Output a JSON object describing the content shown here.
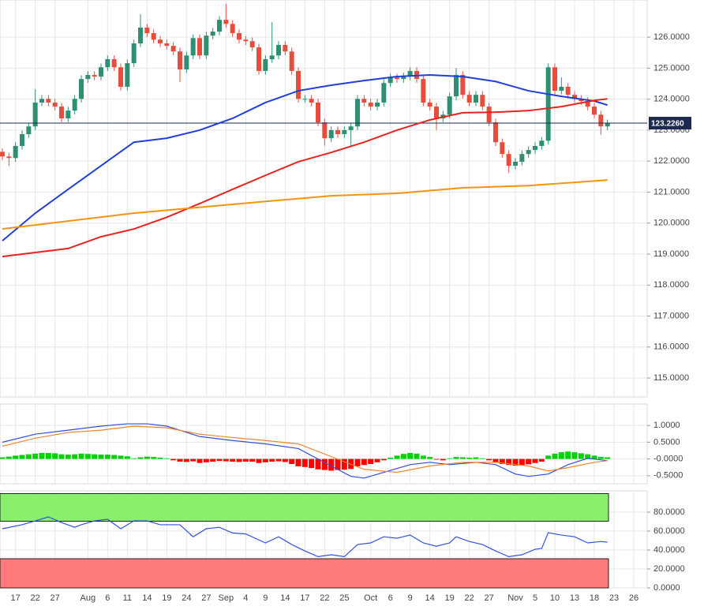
{
  "chart_data": [
    {
      "type": "candlestick",
      "categories": [
        null,
        null,
        "17",
        null,
        null,
        "22",
        null,
        null,
        "27",
        null,
        null,
        null,
        null,
        "Aug",
        null,
        null,
        "6",
        null,
        null,
        "11",
        null,
        null,
        "14",
        null,
        null,
        "19",
        null,
        null,
        "24",
        null,
        null,
        "27",
        null,
        null,
        "Sep",
        null,
        null,
        "4",
        null,
        null,
        "9",
        null,
        null,
        "14",
        null,
        null,
        "17",
        null,
        null,
        "22",
        null,
        null,
        "25",
        null,
        null,
        null,
        "Oct",
        null,
        null,
        "6",
        null,
        null,
        "9",
        null,
        null,
        "14",
        null,
        null,
        "19",
        null,
        null,
        "22",
        null,
        null,
        "27",
        null,
        null,
        null,
        "Nov",
        null,
        null,
        "5",
        null,
        null,
        "10",
        null,
        null,
        "13",
        null,
        null,
        "18",
        null,
        null,
        "23",
        null,
        null,
        "26"
      ],
      "open": [
        122.3,
        122.15,
        122.1,
        122.49,
        122.87,
        123.12,
        123.89,
        124.01,
        123.89,
        123.76,
        123.38,
        123.63,
        124.01,
        124.65,
        124.78,
        124.73,
        125.03,
        125.29,
        125.03,
        124.4,
        125.16,
        125.8,
        126.31,
        126.13,
        125.92,
        125.8,
        125.72,
        125.54,
        124.96,
        125.41,
        125.97,
        125.41,
        126.05,
        126.18,
        126.56,
        126.43,
        126.13,
        125.92,
        125.87,
        125.67,
        124.91,
        125.29,
        125.41,
        125.75,
        125.54,
        124.91,
        124.01,
        124.01,
        123.89,
        123.25,
        122.74,
        123.0,
        122.87,
        123.0,
        123.12,
        124.01,
        123.89,
        123.76,
        123.89,
        124.52,
        124.7,
        124.65,
        124.73,
        124.91,
        124.65,
        123.89,
        123.76,
        123.38,
        123.5,
        124.09,
        124.78,
        124.14,
        123.89,
        124.14,
        123.76,
        123.25,
        122.61,
        122.23,
        121.85,
        121.98,
        122.23,
        122.36,
        122.49,
        122.66,
        125.03,
        124.27,
        124.4,
        124.14,
        124.01,
        123.94,
        123.76,
        123.5,
        123.12,
        null,
        null,
        null,
        null
      ],
      "high": [
        122.42,
        122.27,
        122.61,
        122.99,
        123.24,
        124.32,
        124.13,
        124.13,
        124.01,
        123.88,
        123.75,
        124.13,
        124.77,
        124.9,
        124.9,
        125.15,
        125.41,
        125.41,
        125.15,
        125.28,
        125.92,
        126.74,
        126.43,
        126.25,
        126.04,
        125.92,
        125.84,
        125.66,
        125.53,
        126.09,
        126.09,
        126.17,
        126.3,
        126.68,
        127.07,
        126.55,
        126.25,
        126.04,
        125.99,
        125.79,
        125.41,
        126.48,
        125.87,
        125.87,
        125.66,
        125.03,
        124.13,
        124.13,
        124.01,
        123.37,
        123.12,
        123.12,
        123.12,
        123.24,
        124.13,
        124.13,
        124.01,
        124.01,
        124.64,
        124.82,
        124.82,
        124.85,
        125.03,
        125.03,
        124.77,
        124.01,
        123.88,
        123.62,
        124.21,
        125.0,
        124.9,
        124.26,
        124.26,
        124.26,
        123.88,
        123.37,
        122.73,
        122.35,
        122.1,
        122.35,
        122.48,
        122.61,
        122.78,
        125.15,
        125.15,
        124.7,
        124.52,
        124.26,
        124.13,
        124.06,
        123.88,
        123.62,
        123.34,
        null,
        null,
        null,
        null
      ],
      "low": [
        122.03,
        121.85,
        121.98,
        122.37,
        122.75,
        123.0,
        123.77,
        123.77,
        123.64,
        123.26,
        123.26,
        123.51,
        123.89,
        124.53,
        124.61,
        124.61,
        124.91,
        124.91,
        124.28,
        124.28,
        125.04,
        125.68,
        126.01,
        125.8,
        125.68,
        125.6,
        125.42,
        124.55,
        124.84,
        125.29,
        125.29,
        125.29,
        125.93,
        126.06,
        126.31,
        126.01,
        125.8,
        125.75,
        125.55,
        124.79,
        124.79,
        125.17,
        125.29,
        125.42,
        124.79,
        123.89,
        123.89,
        123.77,
        123.13,
        122.5,
        122.62,
        122.75,
        122.75,
        122.45,
        123.0,
        123.77,
        123.64,
        123.64,
        123.77,
        124.4,
        124.53,
        124.53,
        124.61,
        124.53,
        123.77,
        123.64,
        123.0,
        123.26,
        123.38,
        123.97,
        124.02,
        123.77,
        123.77,
        123.64,
        123.13,
        122.49,
        122.11,
        121.62,
        121.73,
        121.86,
        122.11,
        122.24,
        122.37,
        122.54,
        124.15,
        124.15,
        124.02,
        123.89,
        123.82,
        123.64,
        123.38,
        122.85,
        123.0,
        null,
        null,
        null,
        null
      ],
      "close": [
        122.15,
        122.1,
        122.49,
        122.87,
        123.12,
        123.89,
        124.01,
        123.89,
        123.76,
        123.38,
        123.63,
        124.01,
        124.65,
        124.78,
        124.73,
        125.03,
        125.29,
        125.03,
        124.4,
        125.16,
        125.8,
        126.31,
        126.13,
        125.92,
        125.8,
        125.72,
        125.54,
        124.96,
        125.41,
        125.97,
        125.41,
        126.05,
        126.18,
        126.56,
        126.43,
        126.13,
        125.92,
        125.87,
        125.67,
        124.91,
        125.29,
        125.41,
        125.75,
        125.54,
        124.91,
        124.01,
        124.01,
        123.89,
        123.25,
        122.74,
        123.0,
        122.87,
        123.0,
        123.12,
        124.01,
        123.89,
        123.76,
        123.89,
        124.52,
        124.7,
        124.65,
        124.73,
        124.91,
        124.65,
        123.89,
        123.76,
        123.38,
        123.5,
        124.09,
        124.78,
        124.14,
        123.89,
        124.14,
        123.76,
        123.25,
        122.61,
        122.23,
        121.85,
        121.98,
        122.23,
        122.36,
        122.49,
        122.66,
        125.03,
        124.27,
        124.4,
        124.14,
        124.01,
        123.94,
        123.76,
        123.5,
        123.12,
        123.22,
        null,
        null,
        null,
        null
      ],
      "up_color": "#2f8f72",
      "down_color": "#e84c3d",
      "lines": [
        {
          "color": "#1f3fd8",
          "x": [
            0,
            5,
            10,
            15,
            20,
            25,
            30,
            35,
            40,
            45,
            50,
            55,
            60,
            65,
            70,
            75,
            80,
            85,
            90,
            92
          ],
          "values": [
            119.43,
            120.32,
            121.09,
            121.85,
            122.61,
            122.74,
            123.0,
            123.38,
            123.89,
            124.27,
            124.45,
            124.6,
            124.73,
            124.78,
            124.73,
            124.57,
            124.27,
            124.09,
            123.94,
            123.81
          ]
        },
        {
          "color": "#e8221c",
          "x": [
            0,
            10,
            15,
            20,
            25,
            30,
            35,
            40,
            45,
            50,
            55,
            60,
            65,
            70,
            75,
            80,
            85,
            90,
            92
          ],
          "values": [
            118.92,
            119.18,
            119.56,
            119.81,
            120.19,
            120.63,
            121.09,
            121.54,
            121.98,
            122.28,
            122.61,
            123.0,
            123.33,
            123.56,
            123.58,
            123.63,
            123.76,
            123.96,
            124.01
          ]
        },
        {
          "color": "#f5930f",
          "x": [
            0,
            20,
            40,
            50,
            60,
            70,
            80,
            92
          ],
          "values": [
            119.81,
            120.32,
            120.7,
            120.88,
            120.96,
            121.14,
            121.21,
            121.39
          ]
        }
      ],
      "last_price": {
        "value": 123.226,
        "label": "123.2260"
      },
      "ylim": [
        114.39,
        127.2
      ],
      "yticks": [
        {
          "value": 115,
          "label": "115.0000"
        },
        {
          "value": 116,
          "label": "116.0000"
        },
        {
          "value": 117,
          "label": "117.0000"
        },
        {
          "value": 118,
          "label": "118.0000"
        },
        {
          "value": 119,
          "label": "119.0000"
        },
        {
          "value": 120,
          "label": "120.0000"
        },
        {
          "value": 121,
          "label": "121.0000"
        },
        {
          "value": 122,
          "label": "122.0000"
        },
        {
          "value": 123,
          "label": "123.0000"
        },
        {
          "value": 124,
          "label": "124.0000"
        },
        {
          "value": 125,
          "label": "125.0000"
        },
        {
          "value": 126,
          "label": "126.0000"
        }
      ],
      "grid": true
    },
    {
      "type": "macd",
      "histogram": [
        0.05,
        0.07,
        0.1,
        0.12,
        0.14,
        0.16,
        0.18,
        0.18,
        0.17,
        0.14,
        0.13,
        0.14,
        0.16,
        0.15,
        0.14,
        0.13,
        0.13,
        0.12,
        0.1,
        0.08,
        0.02,
        0.05,
        0.07,
        0.06,
        0.04,
        0.02,
        -0.04,
        -0.08,
        -0.09,
        -0.07,
        -0.12,
        -0.1,
        -0.08,
        -0.06,
        -0.07,
        -0.08,
        -0.09,
        -0.08,
        -0.08,
        -0.12,
        -0.1,
        -0.08,
        -0.07,
        -0.09,
        -0.15,
        -0.22,
        -0.24,
        -0.27,
        -0.31,
        -0.33,
        -0.35,
        -0.33,
        -0.32,
        -0.3,
        -0.22,
        -0.18,
        -0.15,
        -0.1,
        -0.04,
        0.04,
        0.1,
        0.15,
        0.18,
        0.16,
        0.1,
        0.06,
        -0.02,
        -0.04,
        0.02,
        0.06,
        0.05,
        0.04,
        0.05,
        0.02,
        -0.04,
        -0.1,
        -0.15,
        -0.18,
        -0.2,
        -0.18,
        -0.16,
        -0.12,
        -0.08,
        0.1,
        0.16,
        0.2,
        0.22,
        0.2,
        0.17,
        0.14,
        0.1,
        0.06,
        0.05,
        null,
        null,
        null,
        null
      ],
      "up_color": "#00d400",
      "down_color": "#ff0000",
      "lines": [
        {
          "color": "#3050e0",
          "x": [
            0,
            5,
            10,
            15,
            19,
            22,
            25,
            30,
            35,
            40,
            45,
            50,
            53,
            55,
            58,
            62,
            65,
            68,
            72,
            75,
            78,
            80,
            83,
            86,
            89,
            92
          ],
          "values": [
            0.5,
            0.74,
            0.86,
            0.98,
            1.05,
            1.05,
            0.98,
            0.67,
            0.55,
            0.45,
            0.31,
            -0.21,
            -0.52,
            -0.57,
            -0.4,
            -0.17,
            -0.1,
            -0.17,
            -0.1,
            -0.17,
            -0.45,
            -0.52,
            -0.45,
            -0.17,
            0.02,
            -0.05
          ]
        },
        {
          "color": "#f5822a",
          "x": [
            0,
            5,
            10,
            15,
            20,
            25,
            30,
            35,
            40,
            45,
            50,
            55,
            60,
            65,
            70,
            75,
            80,
            83,
            86,
            90,
            92
          ],
          "values": [
            0.38,
            0.62,
            0.79,
            0.86,
            0.98,
            0.93,
            0.74,
            0.64,
            0.55,
            0.45,
            0.07,
            -0.31,
            -0.4,
            -0.21,
            -0.1,
            -0.1,
            -0.21,
            -0.36,
            -0.26,
            -0.1,
            -0.05
          ]
        }
      ],
      "ylim": [
        -0.74,
        1.64
      ],
      "yticks": [
        {
          "value": 1,
          "label": "1.0000"
        },
        {
          "value": 0.5,
          "label": "0.5000"
        },
        {
          "value": 0,
          "label": "-0.0000"
        },
        {
          "value": -0.5,
          "label": "-0.5000"
        }
      ],
      "grid": true
    },
    {
      "type": "rsi",
      "zones": [
        {
          "range": [
            70.4,
            99.6
          ],
          "color": "#88f06a"
        },
        {
          "range": [
            0,
            30.8
          ],
          "color": "#ff7b7b"
        }
      ],
      "lines": [
        {
          "color": "#3050e0",
          "x": [
            0,
            3,
            5,
            7,
            9,
            11,
            12,
            14,
            16,
            18,
            20,
            22,
            24,
            27,
            29,
            31,
            33,
            35,
            37,
            40,
            42,
            44,
            46,
            48,
            50,
            52,
            54,
            56,
            58,
            60,
            62,
            64,
            66,
            68,
            69,
            71,
            73,
            75,
            77,
            79,
            81,
            82,
            83,
            85,
            87,
            89,
            91,
            92
          ],
          "values": [
            62.5,
            66.7,
            70.8,
            75,
            69,
            64,
            66.7,
            70.8,
            72.5,
            62.5,
            70.8,
            70.8,
            66.7,
            66.7,
            54,
            62.5,
            64,
            58,
            57,
            47.5,
            54,
            45.8,
            39,
            33,
            35,
            33,
            45.8,
            47.5,
            54,
            52.5,
            55.8,
            47.5,
            44,
            47.5,
            54,
            49,
            45.8,
            39,
            33,
            35,
            40.8,
            41.7,
            58.3,
            55.8,
            54,
            47.5,
            49,
            48.3
          ]
        }
      ],
      "ylim": [
        0,
        102.5
      ],
      "yticks": [
        {
          "value": 80,
          "label": "80.0000"
        },
        {
          "value": 60,
          "label": "60.0000"
        },
        {
          "value": 40,
          "label": "40.0000"
        },
        {
          "value": 20,
          "label": "20.0000"
        },
        {
          "value": 0,
          "label": "0.0000"
        }
      ],
      "grid": true
    }
  ]
}
